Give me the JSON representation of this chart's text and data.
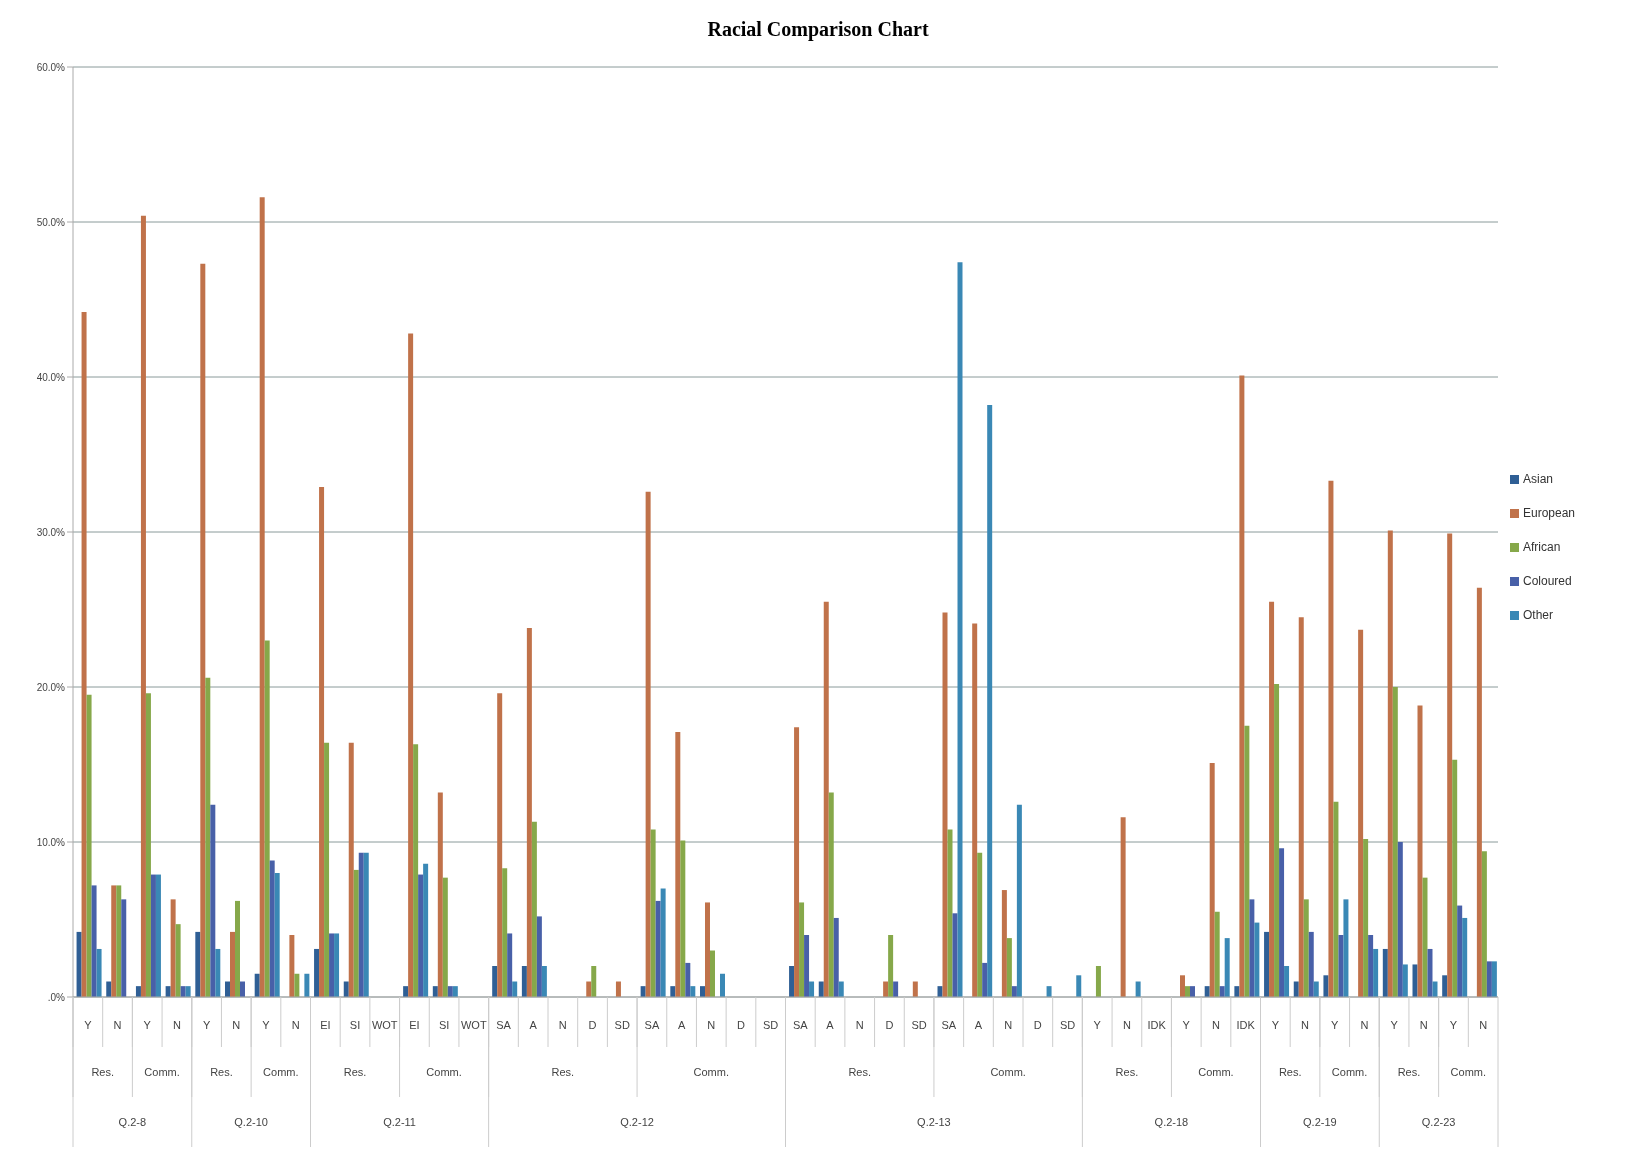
{
  "chart_data": {
    "type": "bar",
    "title": "Racial Comparison Chart",
    "categories": [
      "Y",
      "N",
      "Y",
      "N",
      "Y",
      "N",
      "Y",
      "N",
      "EI",
      "SI",
      "WOT",
      "EI",
      "SI",
      "WOT",
      "SA",
      "A",
      "N",
      "D",
      "SD",
      "SA",
      "A",
      "N",
      "D",
      "SD",
      "SA",
      "A",
      "N",
      "D",
      "SD",
      "SA",
      "A",
      "N",
      "D",
      "SD",
      "Y",
      "N",
      "IDK",
      "Y",
      "N",
      "IDK",
      "Y",
      "N",
      "Y",
      "N",
      "Y",
      "N",
      "Y",
      "N"
    ],
    "series": [
      {
        "name": "Asian",
        "color": "#2f5f95",
        "values": [
          4.2,
          1.0,
          0.7,
          0.7,
          4.2,
          1.0,
          1.5,
          null,
          3.1,
          1.0,
          null,
          0.7,
          0.7,
          null,
          2.0,
          2.0,
          null,
          null,
          null,
          0.7,
          0.7,
          0.7,
          null,
          null,
          2.0,
          1.0,
          null,
          null,
          null,
          0.7,
          null,
          null,
          null,
          null,
          null,
          null,
          null,
          null,
          0.7,
          0.7,
          4.2,
          1.0,
          1.4,
          null,
          3.1,
          2.1,
          1.4,
          null
        ]
      },
      {
        "name": "European",
        "color": "#c0724a",
        "values": [
          44.2,
          7.2,
          50.4,
          6.3,
          47.3,
          4.2,
          51.6,
          4.0,
          32.9,
          16.4,
          null,
          42.8,
          13.2,
          null,
          19.6,
          23.8,
          null,
          1.0,
          1.0,
          32.6,
          17.1,
          6.1,
          null,
          null,
          17.4,
          25.5,
          null,
          1.0,
          1.0,
          24.8,
          24.1,
          6.9,
          null,
          null,
          null,
          11.6,
          null,
          1.4,
          15.1,
          40.1,
          25.5,
          24.5,
          33.3,
          23.7,
          30.1,
          18.8,
          29.9,
          26.4
        ]
      },
      {
        "name": "African",
        "color": "#86a84a",
        "values": [
          19.5,
          7.2,
          19.6,
          4.7,
          20.6,
          6.2,
          23.0,
          1.5,
          16.4,
          8.2,
          null,
          16.3,
          7.7,
          null,
          8.3,
          11.3,
          null,
          2.0,
          null,
          10.8,
          10.1,
          3.0,
          null,
          null,
          6.1,
          13.2,
          null,
          4.0,
          null,
          10.8,
          9.3,
          3.8,
          null,
          null,
          2.0,
          null,
          null,
          0.7,
          5.5,
          17.5,
          20.2,
          6.3,
          12.6,
          10.2,
          20.0,
          7.7,
          15.3,
          9.4
        ]
      },
      {
        "name": "Coloured",
        "color": "#4860a8",
        "values": [
          7.2,
          6.3,
          7.9,
          0.7,
          12.4,
          1.0,
          8.8,
          null,
          4.1,
          9.3,
          null,
          7.9,
          0.7,
          null,
          4.1,
          5.2,
          null,
          null,
          null,
          6.2,
          2.2,
          null,
          null,
          null,
          4.0,
          5.1,
          null,
          1.0,
          null,
          5.4,
          2.2,
          0.7,
          null,
          null,
          null,
          null,
          null,
          0.7,
          0.7,
          6.3,
          9.6,
          4.2,
          4.0,
          4.0,
          10.0,
          3.1,
          5.9,
          2.3
        ]
      },
      {
        "name": "Other",
        "color": "#3a88b5",
        "values": [
          3.1,
          null,
          7.9,
          0.7,
          3.1,
          null,
          8.0,
          1.5,
          4.1,
          9.3,
          null,
          8.6,
          0.7,
          null,
          1.0,
          2.0,
          null,
          null,
          null,
          7.0,
          0.7,
          1.5,
          null,
          null,
          1.0,
          1.0,
          null,
          null,
          null,
          47.4,
          38.2,
          12.4,
          0.7,
          1.4,
          null,
          1.0,
          null,
          null,
          3.8,
          4.8,
          2.0,
          1.0,
          6.3,
          3.1,
          2.1,
          1.0,
          5.1,
          2.3
        ]
      }
    ],
    "ylim": [
      0,
      60
    ],
    "yticks": [
      {
        "value": 0,
        "label": ".0%"
      },
      {
        "value": 10,
        "label": "10.0%"
      },
      {
        "value": 20,
        "label": "20.0%"
      },
      {
        "value": 30,
        "label": "30.0%"
      },
      {
        "value": 40,
        "label": "40.0%"
      },
      {
        "value": 50,
        "label": "50.0%"
      },
      {
        "value": 60,
        "label": "60.0%"
      }
    ],
    "grid": "y",
    "legend": "right",
    "annotations": [
      "Res.",
      "Comm.",
      "Res.",
      "Comm.",
      "Res.",
      "Comm.",
      "Res.",
      "Comm.",
      "Res.",
      "Comm.",
      "Res.",
      "Comm.",
      "Res.",
      "Comm.",
      "Res.",
      "Comm.",
      "Q.2-8",
      "Q.2-10",
      "Q.2-11",
      "Q.2-12",
      "Q.2-13",
      "Q.2-18",
      "Q.2-19",
      "Q.2-23"
    ]
  }
}
